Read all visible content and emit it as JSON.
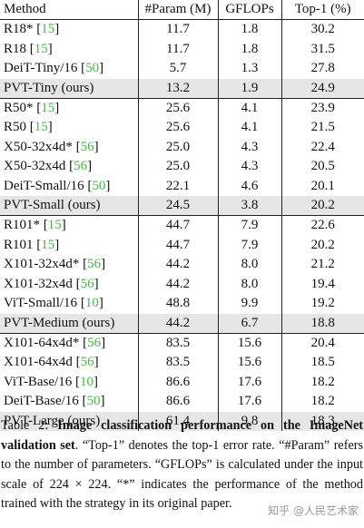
{
  "table": {
    "headers": [
      "Method",
      "#Param (M)",
      "GFLOPs",
      "Top-1 (%)"
    ],
    "groups": [
      [
        {
          "name": "R18*",
          "ref": "15",
          "params": "11.7",
          "gflops": "1.8",
          "top1": "30.2",
          "ours": false
        },
        {
          "name": "R18",
          "ref": "15",
          "params": "11.7",
          "gflops": "1.8",
          "top1": "31.5",
          "ours": false
        },
        {
          "name": "DeiT-Tiny/16",
          "ref": "50",
          "params": "5.7",
          "gflops": "1.3",
          "top1": "27.8",
          "ours": false
        },
        {
          "name": "PVT-Tiny (ours)",
          "ref": "",
          "params": "13.2",
          "gflops": "1.9",
          "top1": "24.9",
          "ours": true
        }
      ],
      [
        {
          "name": "R50*",
          "ref": "15",
          "params": "25.6",
          "gflops": "4.1",
          "top1": "23.9",
          "ours": false
        },
        {
          "name": "R50",
          "ref": "15",
          "params": "25.6",
          "gflops": "4.1",
          "top1": "21.5",
          "ours": false
        },
        {
          "name": "X50-32x4d*",
          "ref": "56",
          "params": "25.0",
          "gflops": "4.3",
          "top1": "22.4",
          "ours": false
        },
        {
          "name": "X50-32x4d",
          "ref": "56",
          "params": "25.0",
          "gflops": "4.3",
          "top1": "20.5",
          "ours": false
        },
        {
          "name": "DeiT-Small/16",
          "ref": "50",
          "params": "22.1",
          "gflops": "4.6",
          "top1": "20.1",
          "ours": false
        },
        {
          "name": "PVT-Small (ours)",
          "ref": "",
          "params": "24.5",
          "gflops": "3.8",
          "top1": "20.2",
          "ours": true
        }
      ],
      [
        {
          "name": "R101*",
          "ref": "15",
          "params": "44.7",
          "gflops": "7.9",
          "top1": "22.6",
          "ours": false
        },
        {
          "name": "R101",
          "ref": "15",
          "params": "44.7",
          "gflops": "7.9",
          "top1": "20.2",
          "ours": false
        },
        {
          "name": "X101-32x4d*",
          "ref": "56",
          "params": "44.2",
          "gflops": "8.0",
          "top1": "21.2",
          "ours": false
        },
        {
          "name": "X101-32x4d",
          "ref": "56",
          "params": "44.2",
          "gflops": "8.0",
          "top1": "19.4",
          "ours": false
        },
        {
          "name": "ViT-Small/16",
          "ref": "10",
          "params": "48.8",
          "gflops": "9.9",
          "top1": "19.2",
          "ours": false
        },
        {
          "name": "PVT-Medium (ours)",
          "ref": "",
          "params": "44.2",
          "gflops": "6.7",
          "top1": "18.8",
          "ours": true
        }
      ],
      [
        {
          "name": "X101-64x4d*",
          "ref": "56",
          "params": "83.5",
          "gflops": "15.6",
          "top1": "20.4",
          "ours": false
        },
        {
          "name": "X101-64x4d",
          "ref": "56",
          "params": "83.5",
          "gflops": "15.6",
          "top1": "18.5",
          "ours": false
        },
        {
          "name": "ViT-Base/16",
          "ref": "10",
          "params": "86.6",
          "gflops": "17.6",
          "top1": "18.2",
          "ours": false
        },
        {
          "name": "DeiT-Base/16",
          "ref": "50",
          "params": "86.6",
          "gflops": "17.6",
          "top1": "18.2",
          "ours": false
        },
        {
          "name": "PVT-Large (ours)",
          "ref": "",
          "params": "61.4",
          "gflops": "9.8",
          "top1": "18.3",
          "ours": true
        }
      ]
    ]
  },
  "caption": {
    "label": "Table 2: ",
    "bold": "Image classification performance on the ImageNet validation set",
    "rest": ". “Top-1” denotes the top-1 error rate. “#Param” refers to the number of parameters. “GFLOPs” is calculated under the input scale of 224 × 224. “*” indicates the performance of the method trained with the strategy in its original paper."
  },
  "watermark": "知乎 @人民艺术家",
  "colors": {
    "ref_link": "#3cbf3c",
    "highlight_row": "#e6e6e6"
  }
}
